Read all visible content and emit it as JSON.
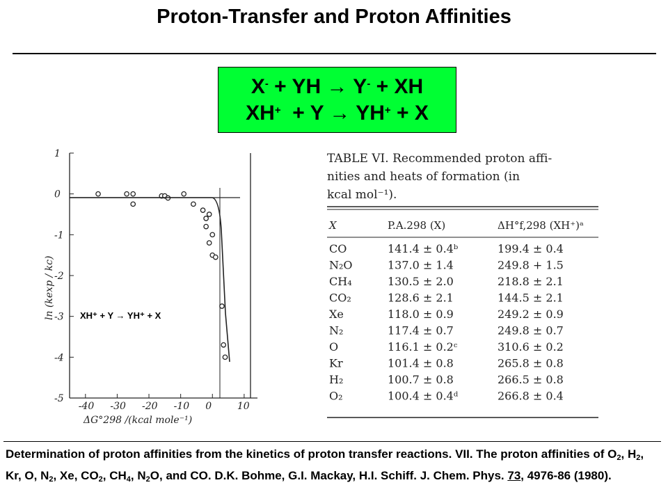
{
  "title": "Proton-Transfer and Proton Affinities",
  "reactions": {
    "line1": {
      "x": "X",
      "x_sup": "-",
      "mid": " + YH ",
      "arrow": "→",
      "y": " Y",
      "y_sup": "-",
      "end": " + XH"
    },
    "line2": {
      "x": "XH",
      "x_sup": "+",
      "mid": "  + Y ",
      "arrow": "→",
      "y": " YH",
      "y_sup": "+",
      "end": " + X"
    }
  },
  "plot": {
    "ylabel": "ln (kexp / kc)",
    "xlabel": "ΔG°298 /(kcal mole⁻¹)",
    "xticks": [
      "-40",
      "-30",
      "-20",
      "-10",
      "0",
      "10"
    ],
    "yticks": [
      "1",
      "0",
      "-1",
      "-2",
      "-3",
      "-4",
      "-5"
    ],
    "inset_label": "XH⁺ + Y → YH⁺ + X"
  },
  "chart_data": {
    "type": "scatter",
    "xlabel": "ΔG°298 /(kcal mole⁻¹)",
    "ylabel": "ln (kexp / kc)",
    "xlim": [
      -45,
      12
    ],
    "ylim": [
      -5,
      1
    ],
    "series": [
      {
        "points": [
          [
            -36,
            0
          ],
          [
            -27,
            0
          ],
          [
            -25,
            0
          ],
          [
            -25,
            -0.25
          ],
          [
            -16,
            -0.05
          ],
          [
            -15,
            -0.05
          ],
          [
            -14,
            -0.1
          ],
          [
            -9,
            0
          ],
          [
            -6,
            -0.25
          ],
          [
            -3,
            -0.4
          ],
          [
            -2,
            -0.6
          ],
          [
            -2,
            -0.8
          ],
          [
            -1,
            -1.2
          ],
          [
            -1,
            -0.5
          ],
          [
            0,
            -1.5
          ],
          [
            0,
            -1.0
          ],
          [
            1,
            -1.55
          ],
          [
            3,
            -2.75
          ],
          [
            3.5,
            -3.7
          ],
          [
            4,
            -4.0
          ]
        ]
      }
    ]
  },
  "table": {
    "heading_line1": "TABLE VI.  Recommended proton affi-",
    "heading_line2": "nities and heats of formation (in",
    "heading_line3": "kcal mol⁻¹).",
    "columns": [
      "X",
      "P.A.298 (X)",
      "ΔH°f,298 (XH⁺)ᵃ"
    ],
    "rows": [
      [
        "CO",
        "141.4 ± 0.4ᵇ",
        "199.4 ± 0.4"
      ],
      [
        "N₂O",
        "137.0 ± 1.4",
        "249.8 + 1.5"
      ],
      [
        "CH₄",
        "130.5 ± 2.0",
        "218.8 ± 2.1"
      ],
      [
        "CO₂",
        "128.6 ± 2.1",
        "144.5 ± 2.1"
      ],
      [
        "Xe",
        "118.0 ± 0.9",
        "249.2 ± 0.9"
      ],
      [
        "N₂",
        "117.4 ± 0.7",
        "249.8 ± 0.7"
      ],
      [
        "O",
        "116.1 ± 0.2ᶜ",
        "310.6 ± 0.2"
      ],
      [
        "Kr",
        "101.4 ± 0.8",
        "265.8 ± 0.8"
      ],
      [
        "H₂",
        "100.7 ± 0.8",
        "266.5 ± 0.8"
      ],
      [
        "O₂",
        "100.4 ± 0.4ᵈ",
        "266.8 ± 0.4"
      ]
    ]
  },
  "caption": {
    "p1": "Determination of proton affinities from the kinetics of proton transfer reactions. VII. The proton affinities of O",
    "s1": "2",
    "p2": ", H",
    "s2": "2",
    "p3": ", Kr, O, N",
    "s3": "2",
    "p4": ", Xe, CO",
    "s4": "2",
    "p5": ", CH",
    "s5": "4",
    "p6": ", N",
    "s6": "2",
    "p7": "O, and CO. D.K. Bohme, G.I. Mackay, H.I. Schiff. J. Chem. Phys. ",
    "volume": "73",
    "p8": ", 4976-86 (1980)."
  }
}
